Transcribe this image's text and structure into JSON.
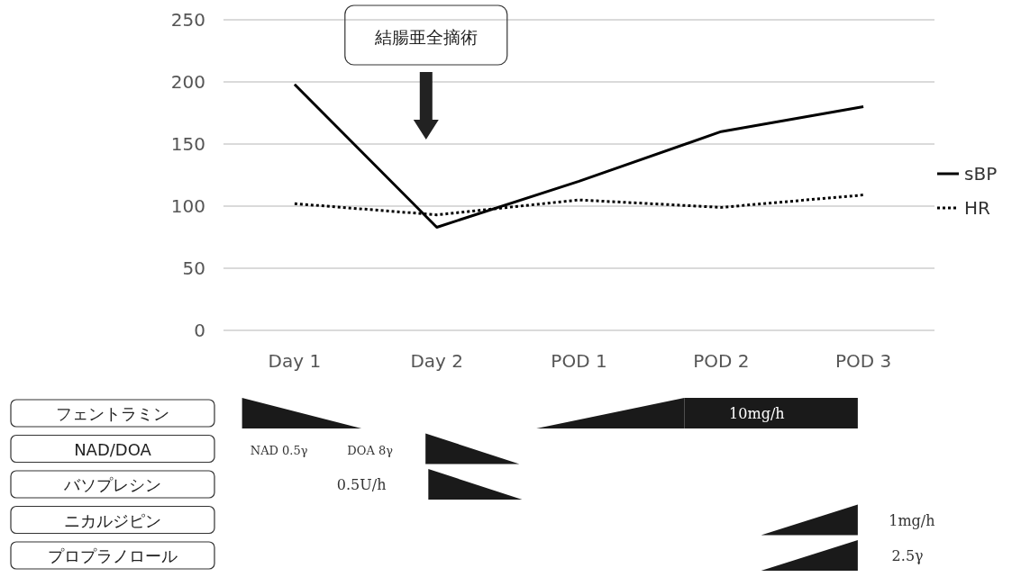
{
  "chart_data": [
    {
      "type": "line",
      "categories": [
        "Day 1",
        "Day 2",
        "POD 1",
        "POD 2",
        "POD 3"
      ],
      "series": [
        {
          "name": "sBP",
          "color": "#000000",
          "values": [
            198,
            83,
            120,
            160,
            180
          ],
          "line_style": "solid"
        },
        {
          "name": "HR",
          "color": "#000000",
          "values": [
            102,
            93,
            105,
            99,
            109
          ],
          "line_style": "dotted"
        }
      ],
      "ylim": [
        0,
        250
      ],
      "yticks": [
        0,
        50,
        100,
        150,
        200,
        250
      ],
      "grid": "y",
      "legend": "right",
      "annotations": [
        "結腸亜全摘術"
      ]
    },
    {
      "type": "other",
      "categories": [
        "フェントラミン",
        "NAD/DOA",
        "バソプレシン",
        "ニカルジピン",
        "プロプラノロール"
      ],
      "annotations": [
        "10mg/h",
        "NAD 0.5γ",
        "DOA 8γ",
        "0.5U/h",
        "1mg/h",
        "2.5γ"
      ]
    }
  ]
}
